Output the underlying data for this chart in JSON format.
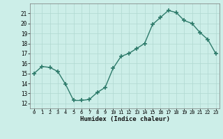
{
  "x": [
    0,
    1,
    2,
    3,
    4,
    5,
    6,
    7,
    8,
    9,
    10,
    11,
    12,
    13,
    14,
    15,
    16,
    17,
    18,
    19,
    20,
    21,
    22,
    23
  ],
  "y": [
    15.0,
    15.7,
    15.6,
    15.2,
    13.9,
    12.3,
    12.3,
    12.4,
    13.1,
    13.6,
    15.5,
    16.7,
    17.0,
    17.5,
    18.0,
    19.9,
    20.6,
    21.3,
    21.1,
    20.3,
    20.0,
    19.1,
    18.4,
    17.0
  ],
  "xlabel": "Humidex (Indice chaleur)",
  "xlim": [
    -0.5,
    23.5
  ],
  "ylim": [
    11.5,
    22.0
  ],
  "yticks": [
    12,
    13,
    14,
    15,
    16,
    17,
    18,
    19,
    20,
    21
  ],
  "xticks": [
    0,
    1,
    2,
    3,
    4,
    5,
    6,
    7,
    8,
    9,
    10,
    11,
    12,
    13,
    14,
    15,
    16,
    17,
    18,
    19,
    20,
    21,
    22,
    23
  ],
  "line_color": "#2d7a6a",
  "bg_color": "#cceee8",
  "grid_color": "#b0d8d0",
  "marker": "+",
  "linewidth": 1.0,
  "markersize": 4,
  "markeredgewidth": 1.2
}
